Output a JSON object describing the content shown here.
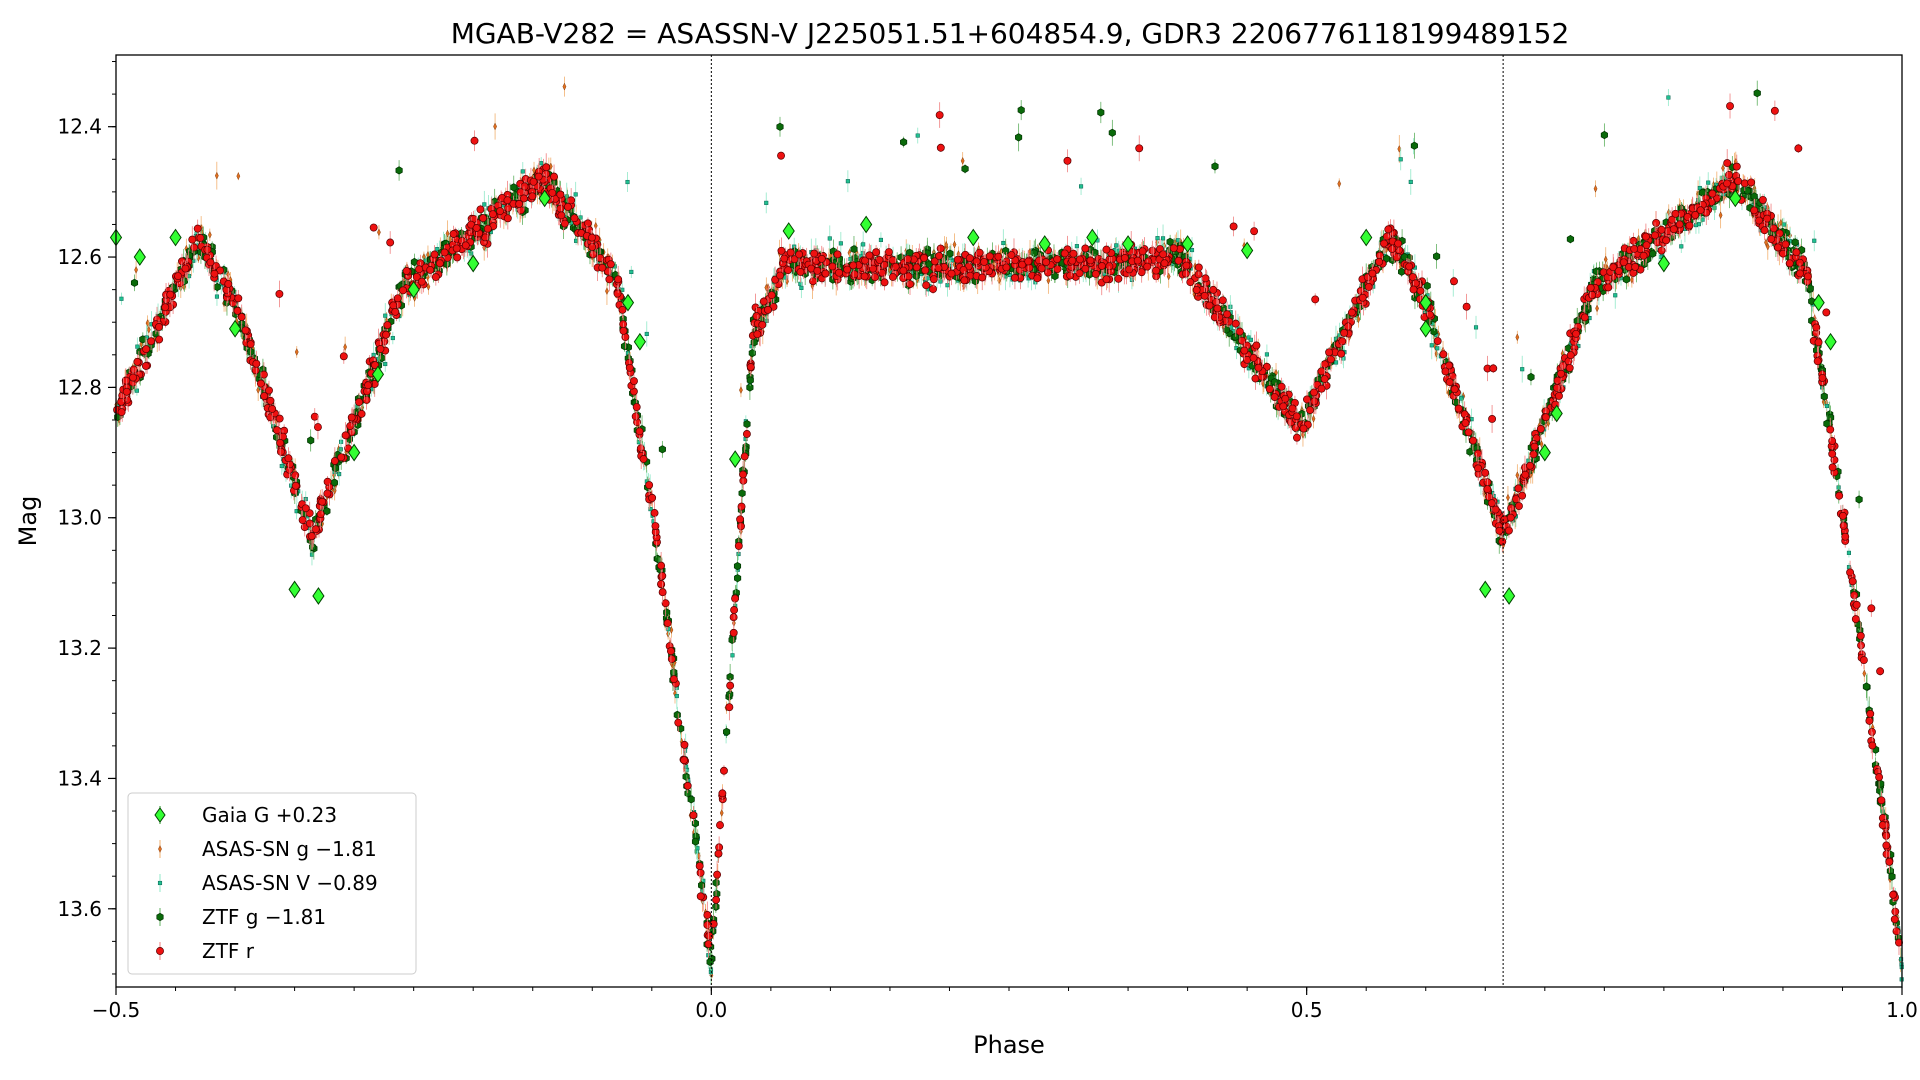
{
  "chart_data": {
    "type": "scatter",
    "title": "MGAB-V282 = ASASSN-V J225051.51+604854.9, GDR3 2206776118199489152",
    "xlabel": "Phase",
    "ylabel": "Mag",
    "xlim": [
      -0.5,
      1.0
    ],
    "ylim": [
      13.72,
      12.29
    ],
    "y_inverted": true,
    "x_ticks": [
      {
        "value": -0.5,
        "label": "−0.5"
      },
      {
        "value": 0.0,
        "label": "0.0"
      },
      {
        "value": 0.5,
        "label": "0.5"
      },
      {
        "value": 1.0,
        "label": "1.0"
      }
    ],
    "y_ticks": [
      {
        "value": 12.4,
        "label": "12.4"
      },
      {
        "value": 12.6,
        "label": "12.6"
      },
      {
        "value": 12.8,
        "label": "12.8"
      },
      {
        "value": 13.0,
        "label": "13.0"
      },
      {
        "value": 13.2,
        "label": "13.2"
      },
      {
        "value": 13.4,
        "label": "13.4"
      },
      {
        "value": 13.6,
        "label": "13.6"
      }
    ],
    "vlines": [
      0.0,
      0.665
    ],
    "legend_position": "lower-left",
    "light_curve_model": {
      "baseline": 12.6,
      "primary_min": {
        "phase": 0.0,
        "depth_mag": 13.68
      },
      "secondary_min": {
        "phase": -0.34,
        "depth_mag": 13.05
      },
      "max_brightness": {
        "phase": 0.87,
        "mag": 12.47
      }
    },
    "series": [
      {
        "name": "Gaia G +0.23",
        "marker": "diamond",
        "color": "#33ff33",
        "edge": "#004400",
        "points": [
          [
            -0.5,
            12.57
          ],
          [
            -0.48,
            12.6
          ],
          [
            -0.45,
            12.57
          ],
          [
            -0.4,
            12.71
          ],
          [
            -0.35,
            13.11
          ],
          [
            -0.33,
            13.12
          ],
          [
            -0.3,
            12.9
          ],
          [
            -0.28,
            12.78
          ],
          [
            -0.25,
            12.65
          ],
          [
            -0.2,
            12.61
          ],
          [
            -0.14,
            12.51
          ],
          [
            -0.07,
            12.67
          ],
          [
            -0.06,
            12.73
          ],
          [
            0.02,
            12.91
          ],
          [
            0.065,
            12.56
          ],
          [
            0.13,
            12.55
          ],
          [
            0.22,
            12.57
          ],
          [
            0.28,
            12.58
          ],
          [
            0.32,
            12.57
          ],
          [
            0.35,
            12.58
          ],
          [
            0.4,
            12.58
          ],
          [
            0.45,
            12.59
          ],
          [
            0.55,
            12.57
          ],
          [
            0.6,
            12.67
          ],
          [
            0.6,
            12.71
          ],
          [
            0.65,
            13.11
          ],
          [
            0.67,
            13.12
          ],
          [
            0.7,
            12.9
          ],
          [
            0.71,
            12.84
          ],
          [
            0.8,
            12.61
          ],
          [
            0.86,
            12.51
          ],
          [
            0.93,
            12.67
          ],
          [
            0.94,
            12.73
          ]
        ]
      },
      {
        "name": "ASAS-SN g −1.81",
        "marker": "thin-diamond",
        "color": "#e07020",
        "points": []
      },
      {
        "name": "ASAS-SN V −0.89",
        "marker": "square",
        "color": "#20c090",
        "points": []
      },
      {
        "name": "ZTF g −1.81",
        "marker": "hexagon",
        "color": "#0a6a0a",
        "points": []
      },
      {
        "name": "ZTF r",
        "marker": "circle",
        "color": "#ee1111",
        "points": []
      }
    ]
  }
}
